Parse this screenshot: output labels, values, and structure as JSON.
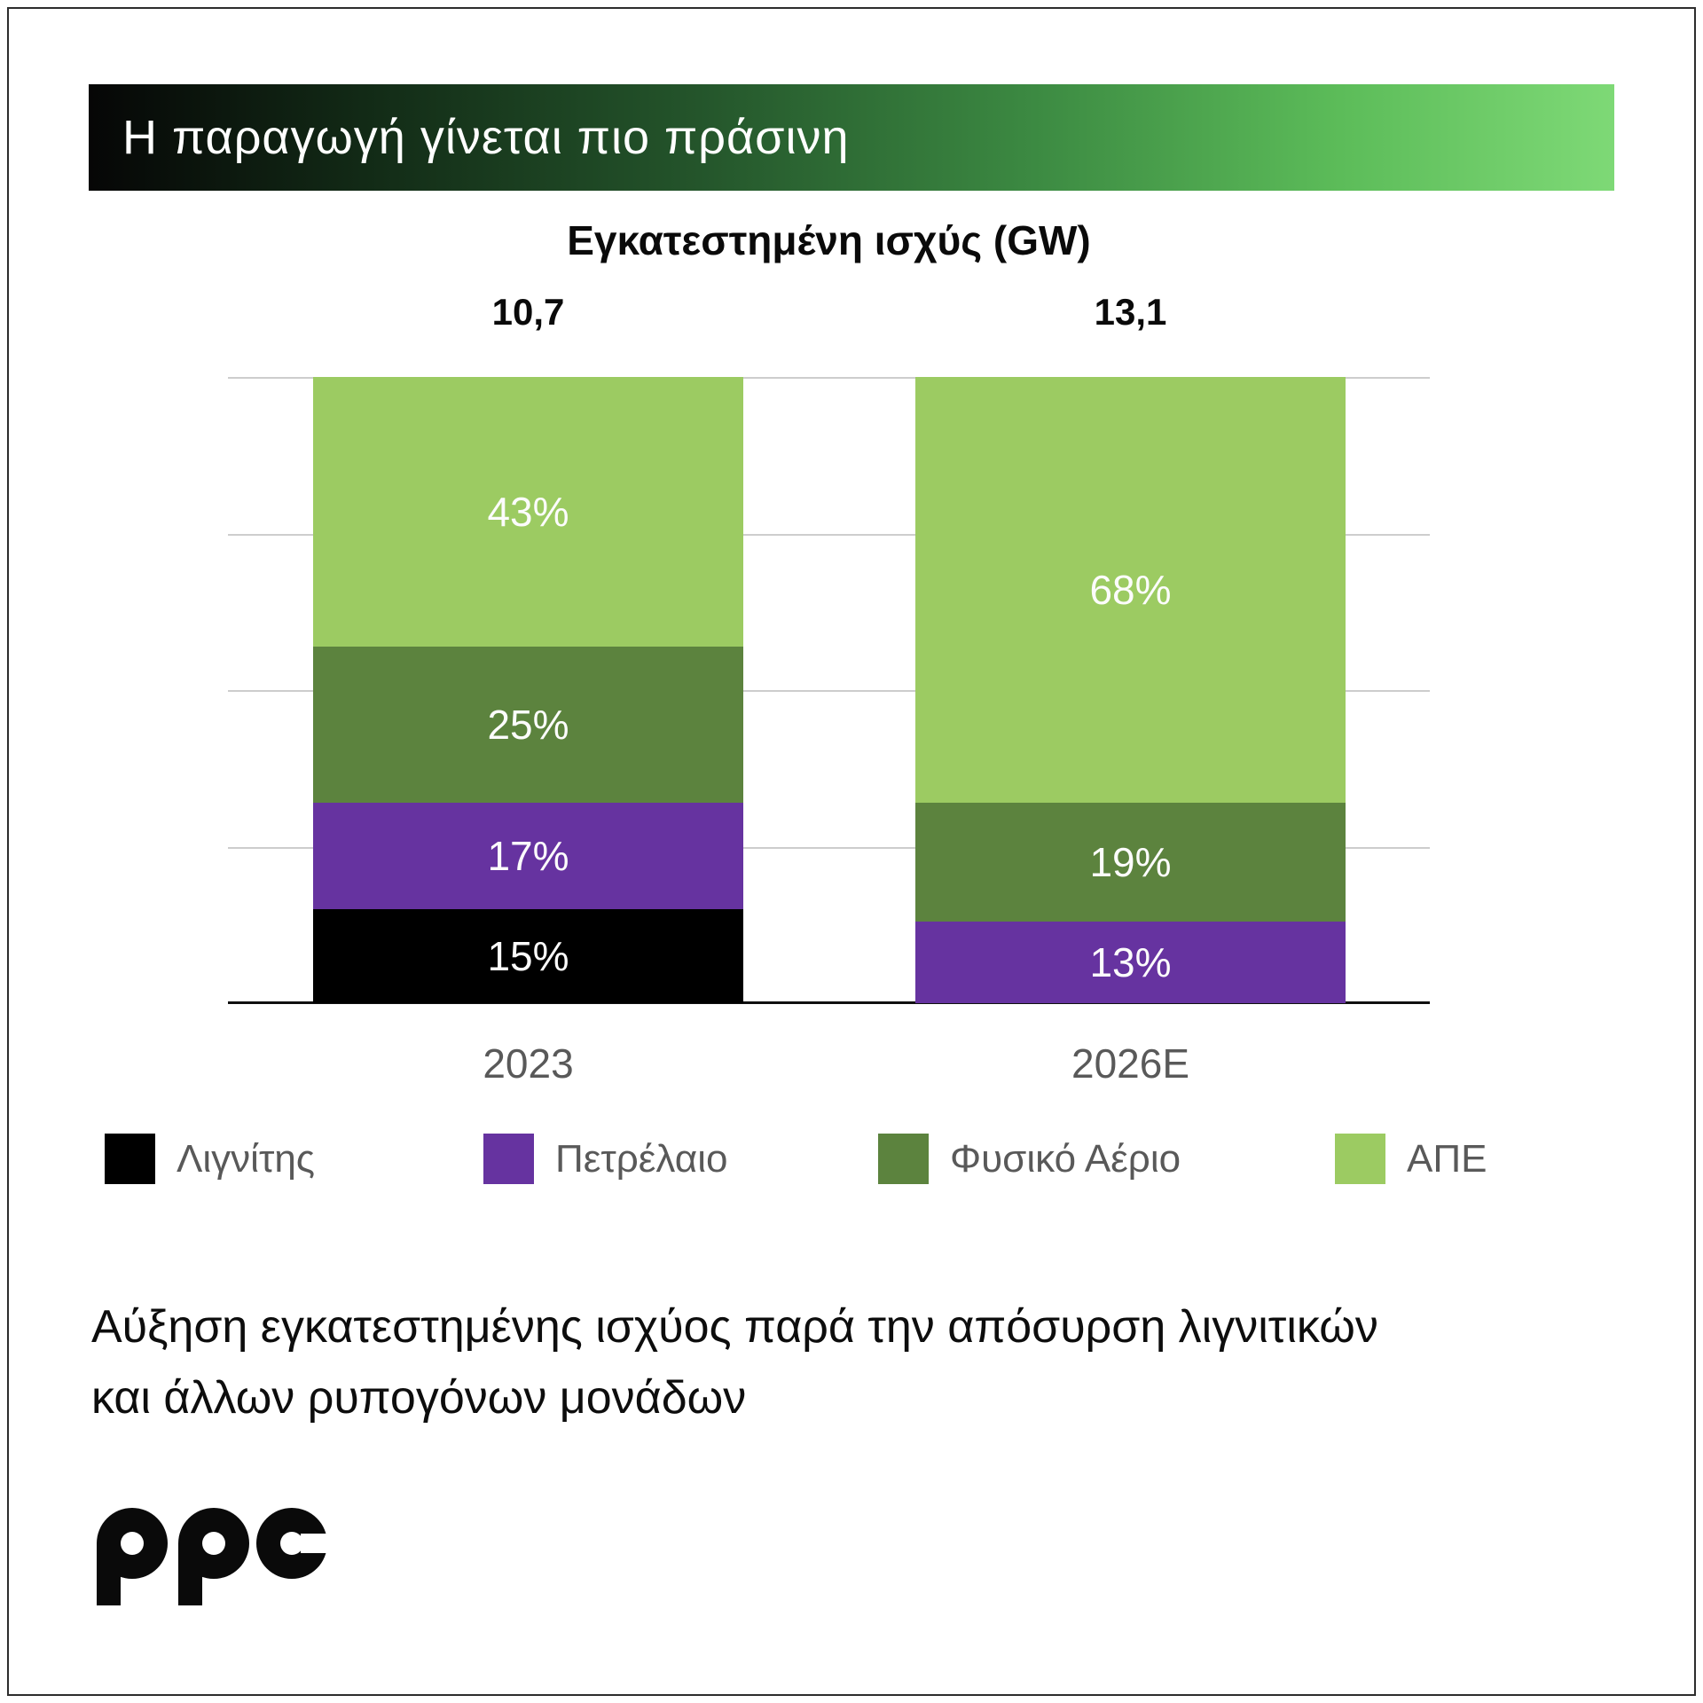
{
  "header": {
    "title": "Η παραγωγή γίνεται πιο πράσινη"
  },
  "chart_data": {
    "type": "bar",
    "stacked": true,
    "normalized": "percent",
    "title": "Εγκατεστημένη ισχύς (GW)",
    "unit": "GW",
    "categories": [
      "2023",
      "2026E"
    ],
    "totals": [
      "10,7",
      "13,1"
    ],
    "series": [
      {
        "name": "Λιγνίτης",
        "color": "#000000",
        "values": [
          15,
          0
        ]
      },
      {
        "name": "Πετρέλαιο",
        "color": "#6633A0",
        "values": [
          17,
          13
        ]
      },
      {
        "name": "Φυσικό Αέριο",
        "color": "#5C833E",
        "values": [
          25,
          19
        ]
      },
      {
        "name": "ΑΠΕ",
        "color": "#9CCB62",
        "values": [
          43,
          68
        ]
      }
    ],
    "value_label_format": "{v}%",
    "ylim": [
      0,
      100
    ],
    "grid": {
      "horizontal_divisions": 4,
      "color": "#CDCDCD"
    },
    "legend_position": "bottom"
  },
  "footnote": {
    "lines": [
      "Αύξηση εγκατεστημένης ισχύος παρά την απόσυρση λιγνιτικών",
      "και άλλων ρυπογόνων μονάδων"
    ]
  },
  "logo": {
    "text": "ppc"
  }
}
